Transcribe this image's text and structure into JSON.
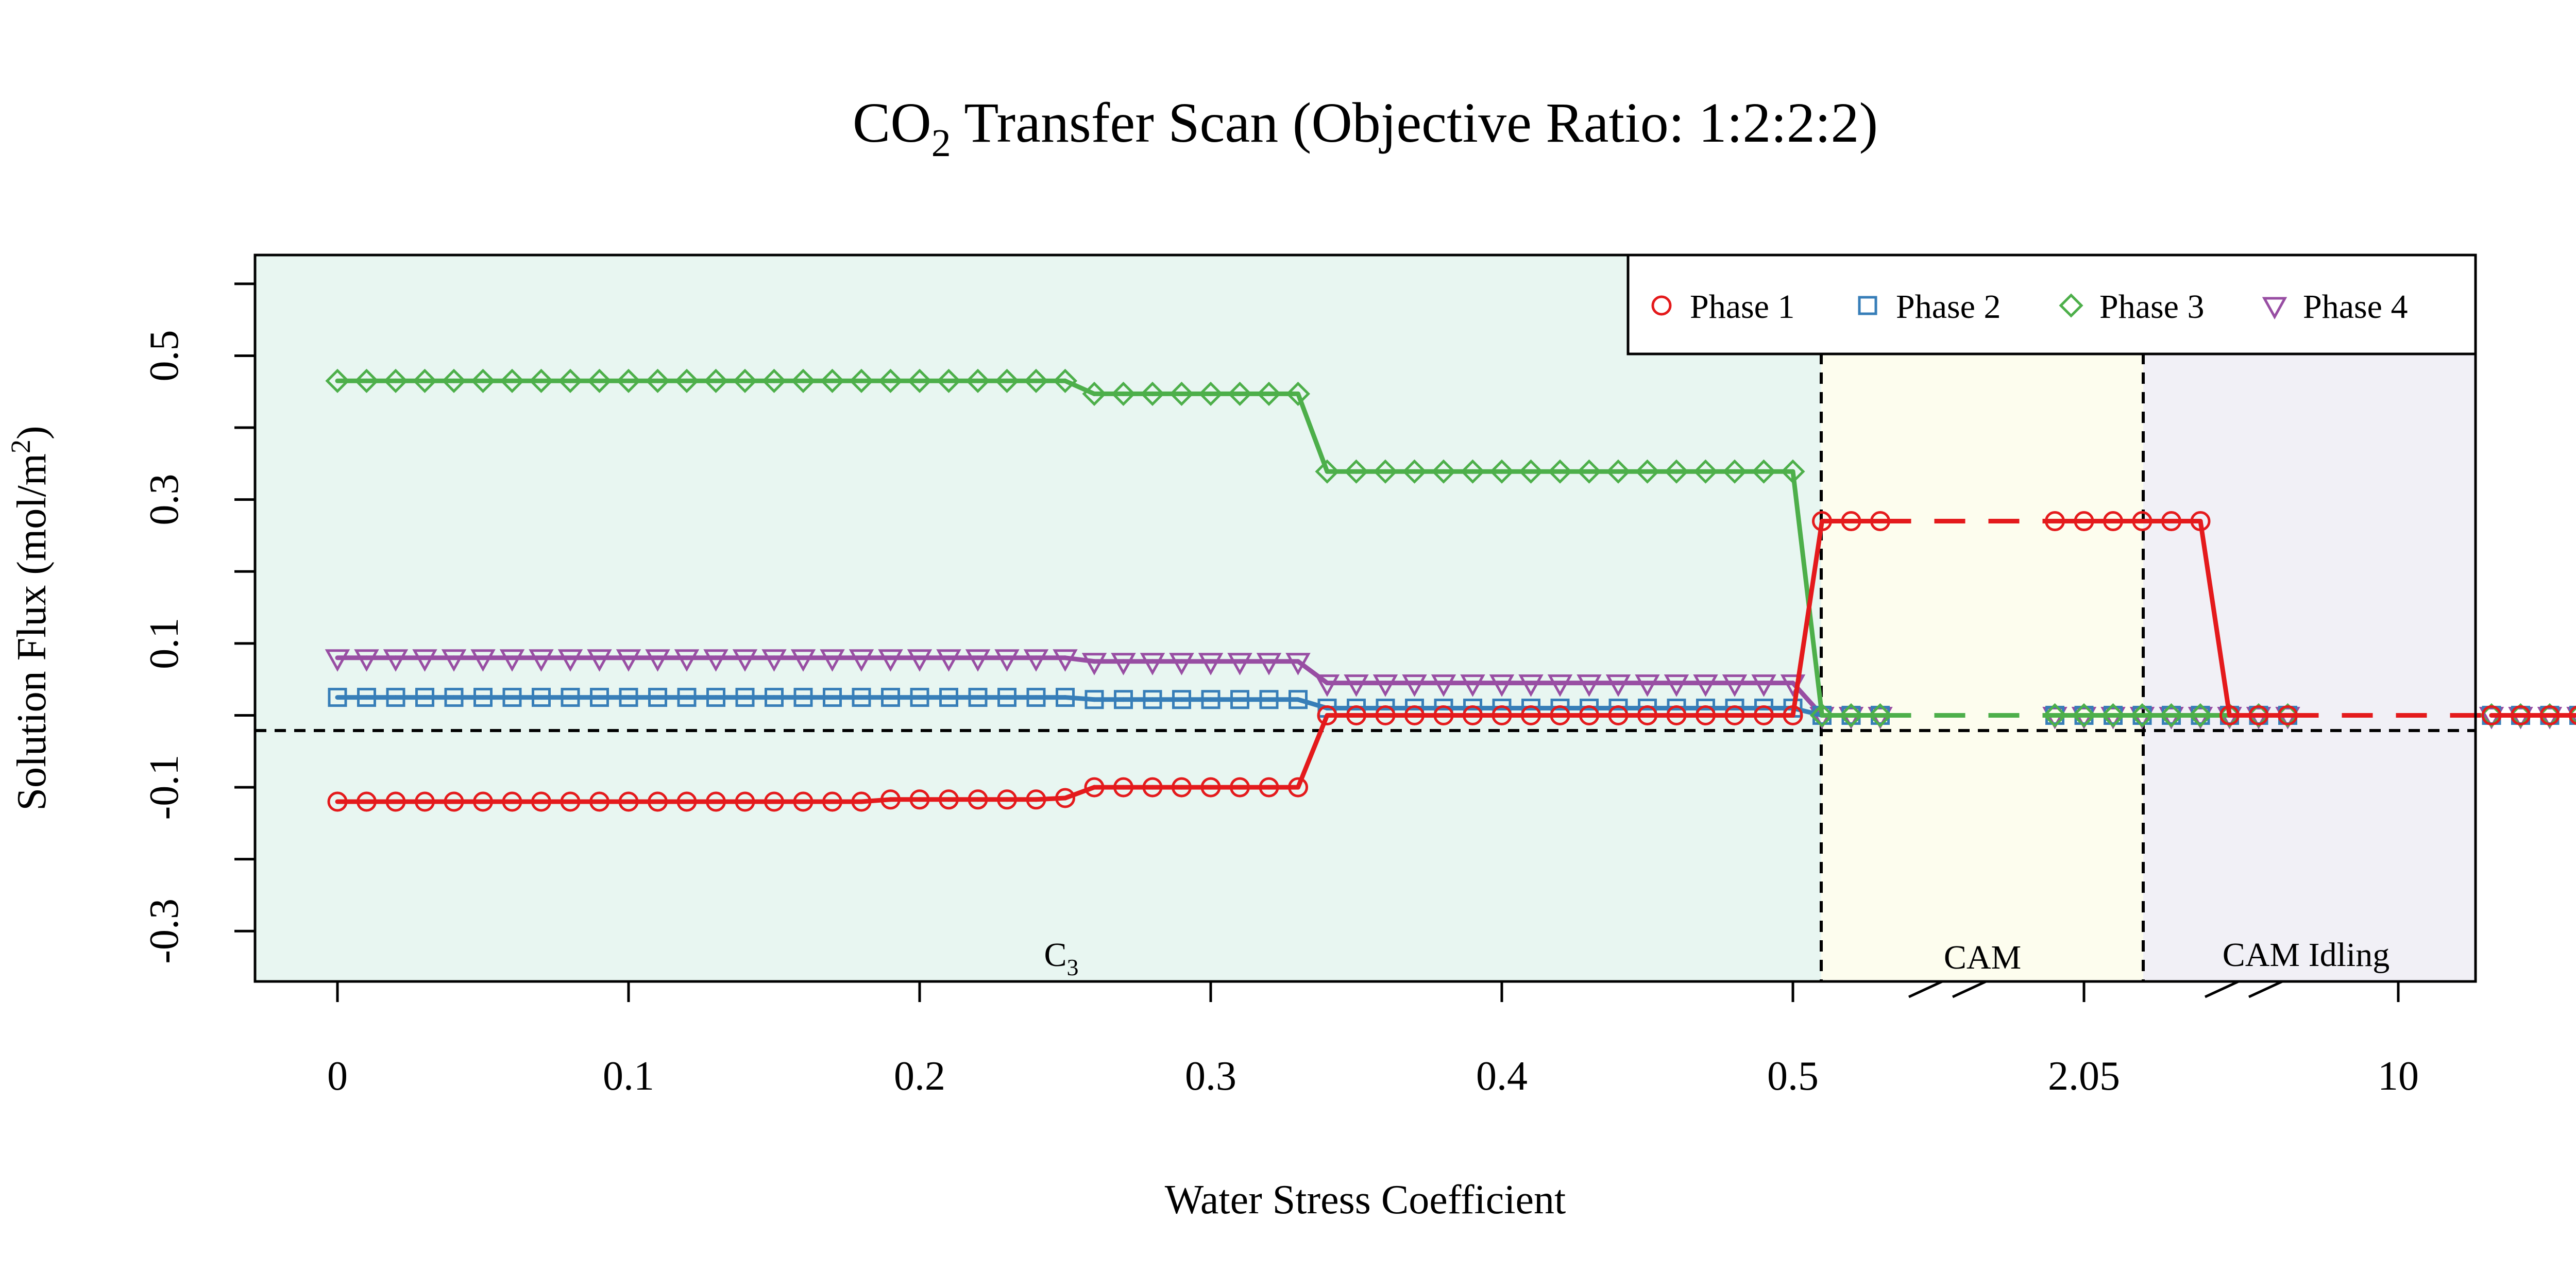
{
  "chart_data": {
    "type": "line",
    "title": "CO",
    "title_sub": "2",
    "title_rest": " Transfer Scan (Objective Ratio: 1:2:2:2)",
    "xlabel": "Water Stress Coefficient",
    "ylabel": "Solution Flux (mol/m",
    "ylabel_sup": "2",
    "ylabel_end": ")",
    "x_tick_labels": [
      "0",
      "0.1",
      "0.2",
      "0.3",
      "0.4",
      "0.5",
      "2.05",
      "10"
    ],
    "y_tick_labels": [
      "-0.3",
      "-0.1",
      "0.1",
      "0.3",
      "0.5"
    ],
    "y_ticks": [
      -0.3,
      -0.2,
      -0.1,
      0,
      0.1,
      0.2,
      0.3,
      0.4,
      0.5,
      0.6
    ],
    "ylim": [
      -0.37,
      0.64
    ],
    "grid": false,
    "legend_position": "top-right",
    "regions": [
      {
        "label": "C",
        "sub": "3",
        "color": "#e8f6f1"
      },
      {
        "label": "CAM",
        "sub": "",
        "color": "#fdfdee"
      },
      {
        "label": "CAM Idling",
        "sub": "",
        "color": "#f1f0f6"
      }
    ],
    "series": [
      {
        "name": "Phase 1",
        "color": "#e41a1c",
        "marker": "circle",
        "values": [
          -0.12,
          -0.12,
          -0.12,
          -0.12,
          -0.12,
          -0.12,
          -0.12,
          -0.12,
          -0.12,
          -0.12,
          -0.12,
          -0.12,
          -0.12,
          -0.12,
          -0.12,
          -0.12,
          -0.12,
          -0.12,
          -0.12,
          -0.117,
          -0.117,
          -0.117,
          -0.117,
          -0.117,
          -0.117,
          -0.115,
          -0.1,
          -0.1,
          -0.1,
          -0.1,
          -0.1,
          -0.1,
          -0.1,
          -0.1,
          0,
          0,
          0,
          0,
          0,
          0,
          0,
          0,
          0,
          0,
          0,
          0,
          0,
          0,
          0,
          0,
          0,
          0.27,
          0.27,
          0.27,
          null,
          null,
          null,
          null,
          null,
          0.27,
          0.27,
          0.27,
          0.27,
          0.27,
          0.27,
          0,
          0,
          0,
          null,
          null,
          null,
          null,
          null,
          null,
          0,
          0,
          0,
          0
        ]
      },
      {
        "name": "Phase 2",
        "color": "#377eb8",
        "marker": "square",
        "values": [
          0.025,
          0.025,
          0.025,
          0.025,
          0.025,
          0.025,
          0.025,
          0.025,
          0.025,
          0.025,
          0.025,
          0.025,
          0.025,
          0.025,
          0.025,
          0.025,
          0.025,
          0.025,
          0.025,
          0.025,
          0.025,
          0.025,
          0.025,
          0.025,
          0.025,
          0.025,
          0.022,
          0.022,
          0.022,
          0.022,
          0.022,
          0.022,
          0.022,
          0.022,
          0.01,
          0.01,
          0.01,
          0.01,
          0.01,
          0.01,
          0.01,
          0.01,
          0.01,
          0.01,
          0.01,
          0.01,
          0.01,
          0.01,
          0.01,
          0.01,
          0.01,
          0,
          0,
          0,
          null,
          null,
          null,
          null,
          null,
          0,
          0,
          0,
          0,
          0,
          0,
          0,
          0,
          0,
          null,
          null,
          null,
          null,
          null,
          null,
          0,
          0,
          0,
          0
        ]
      },
      {
        "name": "Phase 3",
        "color": "#4daf4a",
        "marker": "diamond",
        "values": [
          0.465,
          0.465,
          0.465,
          0.465,
          0.465,
          0.465,
          0.465,
          0.465,
          0.465,
          0.465,
          0.465,
          0.465,
          0.465,
          0.465,
          0.465,
          0.465,
          0.465,
          0.465,
          0.465,
          0.465,
          0.465,
          0.465,
          0.465,
          0.465,
          0.465,
          0.465,
          0.447,
          0.447,
          0.447,
          0.447,
          0.447,
          0.447,
          0.447,
          0.447,
          0.339,
          0.339,
          0.339,
          0.339,
          0.339,
          0.339,
          0.339,
          0.339,
          0.339,
          0.339,
          0.339,
          0.339,
          0.339,
          0.339,
          0.339,
          0.339,
          0.339,
          0,
          0,
          0,
          null,
          null,
          null,
          null,
          null,
          0,
          0,
          0,
          0,
          0,
          0,
          0,
          0,
          0,
          null,
          null,
          null,
          null,
          null,
          null,
          0,
          0,
          0,
          0
        ]
      },
      {
        "name": "Phase 4",
        "color": "#984ea3",
        "marker": "triangle-down",
        "values": [
          0.08,
          0.08,
          0.08,
          0.08,
          0.08,
          0.08,
          0.08,
          0.08,
          0.08,
          0.08,
          0.08,
          0.08,
          0.08,
          0.08,
          0.08,
          0.08,
          0.08,
          0.08,
          0.08,
          0.08,
          0.08,
          0.08,
          0.08,
          0.08,
          0.08,
          0.08,
          0.075,
          0.075,
          0.075,
          0.075,
          0.075,
          0.075,
          0.075,
          0.075,
          0.045,
          0.045,
          0.045,
          0.045,
          0.045,
          0.045,
          0.045,
          0.045,
          0.045,
          0.045,
          0.045,
          0.045,
          0.045,
          0.045,
          0.045,
          0.045,
          0.045,
          0,
          0,
          0,
          null,
          null,
          null,
          null,
          null,
          0,
          0,
          0,
          0,
          0,
          0,
          0,
          0,
          0,
          null,
          null,
          null,
          null,
          null,
          null,
          0,
          0,
          0,
          0
        ]
      }
    ]
  }
}
